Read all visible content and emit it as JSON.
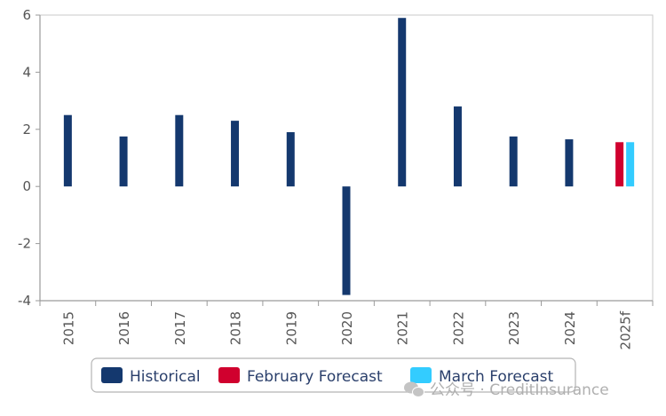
{
  "chart_data": {
    "type": "bar",
    "categories": [
      "2015",
      "2016",
      "2017",
      "2018",
      "2019",
      "2020",
      "2021",
      "2022",
      "2023",
      "2024",
      "2025f"
    ],
    "series": [
      {
        "name": "Historical",
        "color": "#14386e",
        "values": [
          2.5,
          1.75,
          2.5,
          2.3,
          1.9,
          -3.8,
          5.9,
          2.8,
          1.75,
          1.65,
          null
        ]
      },
      {
        "name": "February Forecast",
        "color": "#d0002e",
        "values": [
          null,
          null,
          null,
          null,
          null,
          null,
          null,
          null,
          null,
          null,
          1.55
        ]
      },
      {
        "name": "March Forecast",
        "color": "#33ccff",
        "values": [
          null,
          null,
          null,
          null,
          null,
          null,
          null,
          null,
          null,
          null,
          1.55
        ]
      }
    ],
    "yticks": [
      6,
      4,
      2,
      0,
      -2,
      -4
    ],
    "ylim": [
      -4,
      6
    ],
    "legend_position": "bottom-center"
  },
  "watermark": {
    "text": "公众号 · CreditInsurance",
    "icon": "wechat-icon"
  }
}
